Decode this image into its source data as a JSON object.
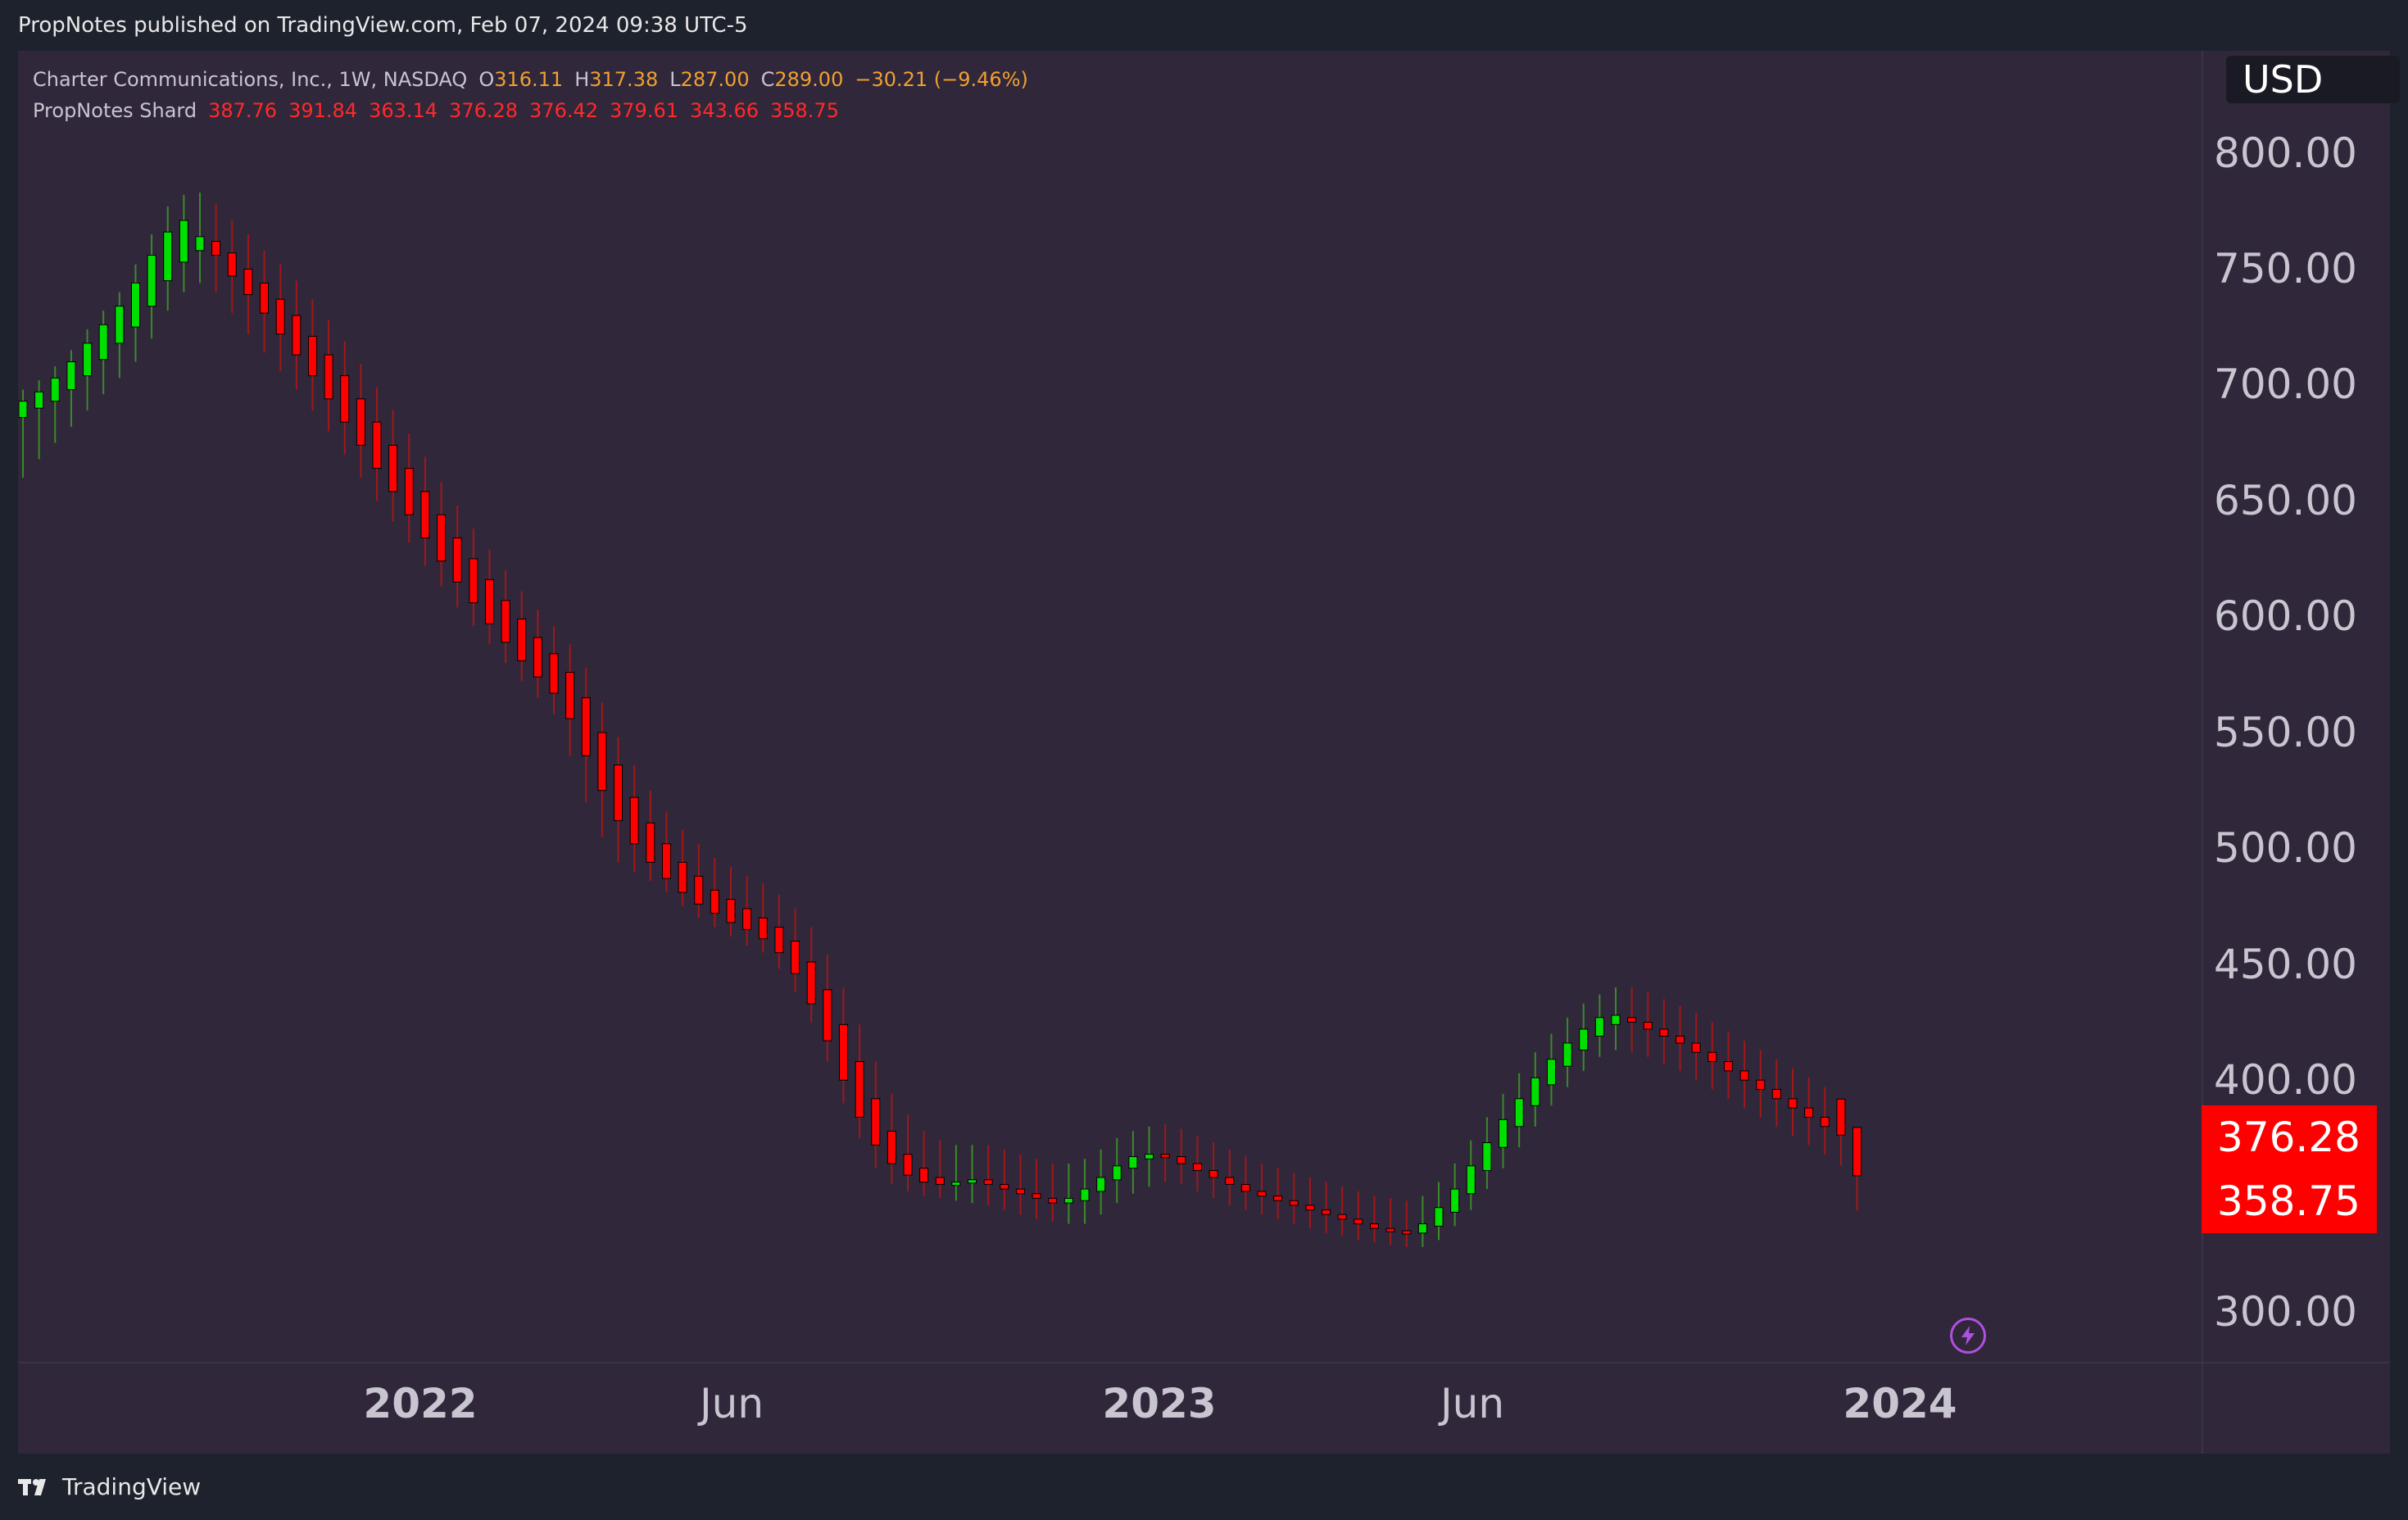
{
  "header": {
    "published": "PropNotes published on TradingView.com, Feb 07, 2024 09:38 UTC-5"
  },
  "legend": {
    "symbol_title": "Charter Communications, Inc., 1W, NASDAQ",
    "o_label": "O",
    "o_value": "316.11",
    "h_label": "H",
    "h_value": "317.38",
    "l_label": "L",
    "l_value": "287.00",
    "c_label": "C",
    "c_value": "289.00",
    "change": "−30.21 (−9.46%)",
    "indicator_name": "PropNotes Shard",
    "indicator_values": [
      "387.76",
      "391.84",
      "363.14",
      "376.28",
      "376.42",
      "379.61",
      "343.66",
      "358.75"
    ]
  },
  "price_axis": {
    "currency": "USD",
    "labels": [
      "800.00",
      "750.00",
      "700.00",
      "650.00",
      "600.00",
      "550.00",
      "500.00",
      "450.00",
      "400.00",
      "300.00"
    ],
    "tags": [
      "376.28",
      "358.75"
    ]
  },
  "time_axis": {
    "labels": [
      "2022",
      "Jun",
      "2023",
      "Jun",
      "2024"
    ]
  },
  "footer": {
    "brand": "TradingView"
  },
  "icons": {
    "bolt": "lightning-bolt-icon",
    "logo": "tradingview-logo-icon"
  },
  "colors": {
    "background": "#30273a",
    "up": "#00e000",
    "up_wick": "#3a8a2a",
    "down": "#ff0000",
    "down_wick": "#a01818",
    "tag": "#ff0000"
  },
  "chart_data": {
    "type": "candlestick",
    "interval": "1W",
    "ylim": [
      290,
      820
    ],
    "x_range": [
      "2021-10-11",
      "2024-02-05"
    ],
    "series": [
      {
        "x": "2021-10-11",
        "open": 686,
        "high": 698,
        "low": 660,
        "close": 693
      },
      {
        "x": "2021-10-18",
        "open": 690,
        "high": 702,
        "low": 668,
        "close": 697
      },
      {
        "x": "2021-10-25",
        "open": 693,
        "high": 708,
        "low": 675,
        "close": 703
      },
      {
        "x": "2021-11-01",
        "open": 698,
        "high": 715,
        "low": 682,
        "close": 710
      },
      {
        "x": "2021-11-08",
        "open": 704,
        "high": 724,
        "low": 689,
        "close": 718
      },
      {
        "x": "2021-11-15",
        "open": 711,
        "high": 732,
        "low": 696,
        "close": 726
      },
      {
        "x": "2021-11-22",
        "open": 718,
        "high": 740,
        "low": 703,
        "close": 734
      },
      {
        "x": "2021-11-29",
        "open": 725,
        "high": 752,
        "low": 710,
        "close": 744
      },
      {
        "x": "2021-12-06",
        "open": 734,
        "high": 765,
        "low": 720,
        "close": 756
      },
      {
        "x": "2021-12-13",
        "open": 745,
        "high": 777,
        "low": 732,
        "close": 766
      },
      {
        "x": "2021-12-20",
        "open": 753,
        "high": 782,
        "low": 740,
        "close": 771
      },
      {
        "x": "2021-12-27",
        "open": 758,
        "high": 783,
        "low": 744,
        "close": 764
      },
      {
        "x": "2022-01-03",
        "open": 762,
        "high": 778,
        "low": 740,
        "close": 756
      },
      {
        "x": "2022-01-10",
        "open": 757,
        "high": 771,
        "low": 731,
        "close": 747
      },
      {
        "x": "2022-01-17",
        "open": 750,
        "high": 765,
        "low": 722,
        "close": 739
      },
      {
        "x": "2022-01-24",
        "open": 744,
        "high": 758,
        "low": 714,
        "close": 731
      },
      {
        "x": "2022-01-31",
        "open": 737,
        "high": 752,
        "low": 706,
        "close": 722
      },
      {
        "x": "2022-02-07",
        "open": 730,
        "high": 745,
        "low": 698,
        "close": 713
      },
      {
        "x": "2022-02-14",
        "open": 721,
        "high": 737,
        "low": 689,
        "close": 704
      },
      {
        "x": "2022-02-21",
        "open": 713,
        "high": 728,
        "low": 680,
        "close": 694
      },
      {
        "x": "2022-02-28",
        "open": 704,
        "high": 719,
        "low": 670,
        "close": 684
      },
      {
        "x": "2022-03-07",
        "open": 694,
        "high": 709,
        "low": 660,
        "close": 674
      },
      {
        "x": "2022-03-14",
        "open": 684,
        "high": 699,
        "low": 650,
        "close": 664
      },
      {
        "x": "2022-03-21",
        "open": 674,
        "high": 689,
        "low": 641,
        "close": 654
      },
      {
        "x": "2022-03-28",
        "open": 664,
        "high": 679,
        "low": 632,
        "close": 644
      },
      {
        "x": "2022-04-04",
        "open": 654,
        "high": 669,
        "low": 622,
        "close": 634
      },
      {
        "x": "2022-04-11",
        "open": 644,
        "high": 658,
        "low": 613,
        "close": 624
      },
      {
        "x": "2022-04-18",
        "open": 634,
        "high": 648,
        "low": 604,
        "close": 615
      },
      {
        "x": "2022-04-25",
        "open": 625,
        "high": 638,
        "low": 596,
        "close": 606
      },
      {
        "x": "2022-05-02",
        "open": 616,
        "high": 629,
        "low": 588,
        "close": 597
      },
      {
        "x": "2022-05-09",
        "open": 607,
        "high": 620,
        "low": 580,
        "close": 589
      },
      {
        "x": "2022-05-16",
        "open": 599,
        "high": 611,
        "low": 572,
        "close": 581
      },
      {
        "x": "2022-05-23",
        "open": 591,
        "high": 603,
        "low": 565,
        "close": 574
      },
      {
        "x": "2022-05-30",
        "open": 584,
        "high": 596,
        "low": 558,
        "close": 567
      },
      {
        "x": "2022-06-06",
        "open": 576,
        "high": 588,
        "low": 540,
        "close": 556
      },
      {
        "x": "2022-06-13",
        "open": 565,
        "high": 578,
        "low": 520,
        "close": 540
      },
      {
        "x": "2022-06-20",
        "open": 550,
        "high": 563,
        "low": 505,
        "close": 525
      },
      {
        "x": "2022-06-27",
        "open": 536,
        "high": 548,
        "low": 494,
        "close": 512
      },
      {
        "x": "2022-07-04",
        "open": 522,
        "high": 536,
        "low": 490,
        "close": 502
      },
      {
        "x": "2022-07-11",
        "open": 511,
        "high": 525,
        "low": 486,
        "close": 494
      },
      {
        "x": "2022-07-18",
        "open": 502,
        "high": 516,
        "low": 481,
        "close": 487
      },
      {
        "x": "2022-07-25",
        "open": 494,
        "high": 508,
        "low": 475,
        "close": 481
      },
      {
        "x": "2022-08-01",
        "open": 488,
        "high": 502,
        "low": 470,
        "close": 476
      },
      {
        "x": "2022-08-08",
        "open": 482,
        "high": 496,
        "low": 466,
        "close": 472
      },
      {
        "x": "2022-08-15",
        "open": 478,
        "high": 492,
        "low": 462,
        "close": 468
      },
      {
        "x": "2022-08-22",
        "open": 474,
        "high": 488,
        "low": 458,
        "close": 465
      },
      {
        "x": "2022-08-29",
        "open": 470,
        "high": 485,
        "low": 455,
        "close": 461
      },
      {
        "x": "2022-09-05",
        "open": 466,
        "high": 480,
        "low": 448,
        "close": 455
      },
      {
        "x": "2022-09-12",
        "open": 460,
        "high": 474,
        "low": 438,
        "close": 446
      },
      {
        "x": "2022-09-19",
        "open": 451,
        "high": 466,
        "low": 425,
        "close": 433
      },
      {
        "x": "2022-09-26",
        "open": 439,
        "high": 454,
        "low": 408,
        "close": 417
      },
      {
        "x": "2022-10-03",
        "open": 424,
        "high": 440,
        "low": 390,
        "close": 400
      },
      {
        "x": "2022-10-10",
        "open": 408,
        "high": 424,
        "low": 375,
        "close": 384
      },
      {
        "x": "2022-10-17",
        "open": 392,
        "high": 408,
        "low": 362,
        "close": 372
      },
      {
        "x": "2022-10-24",
        "open": 378,
        "high": 394,
        "low": 355,
        "close": 364
      },
      {
        "x": "2022-10-31",
        "open": 368,
        "high": 385,
        "low": 352,
        "close": 359
      },
      {
        "x": "2022-11-07",
        "open": 362,
        "high": 378,
        "low": 350,
        "close": 356
      },
      {
        "x": "2022-11-14",
        "open": 358,
        "high": 374,
        "low": 349,
        "close": 355
      },
      {
        "x": "2022-11-21",
        "open": 356,
        "high": 372,
        "low": 348,
        "close": 356
      },
      {
        "x": "2022-11-28",
        "open": 356,
        "high": 372,
        "low": 347,
        "close": 357
      },
      {
        "x": "2022-12-05",
        "open": 357,
        "high": 372,
        "low": 346,
        "close": 355
      },
      {
        "x": "2022-12-12",
        "open": 355,
        "high": 370,
        "low": 344,
        "close": 353
      },
      {
        "x": "2022-12-19",
        "open": 353,
        "high": 368,
        "low": 342,
        "close": 351
      },
      {
        "x": "2022-12-26",
        "open": 351,
        "high": 366,
        "low": 340,
        "close": 349
      },
      {
        "x": "2023-01-02",
        "open": 349,
        "high": 364,
        "low": 339,
        "close": 347
      },
      {
        "x": "2023-01-09",
        "open": 347,
        "high": 364,
        "low": 338,
        "close": 349
      },
      {
        "x": "2023-01-16",
        "open": 348,
        "high": 366,
        "low": 338,
        "close": 353
      },
      {
        "x": "2023-01-23",
        "open": 352,
        "high": 370,
        "low": 342,
        "close": 358
      },
      {
        "x": "2023-01-30",
        "open": 357,
        "high": 375,
        "low": 347,
        "close": 363
      },
      {
        "x": "2023-02-06",
        "open": 362,
        "high": 378,
        "low": 351,
        "close": 367
      },
      {
        "x": "2023-02-13",
        "open": 366,
        "high": 380,
        "low": 354,
        "close": 368
      },
      {
        "x": "2023-02-20",
        "open": 368,
        "high": 381,
        "low": 356,
        "close": 367
      },
      {
        "x": "2023-02-27",
        "open": 367,
        "high": 379,
        "low": 355,
        "close": 364
      },
      {
        "x": "2023-03-06",
        "open": 364,
        "high": 376,
        "low": 352,
        "close": 361
      },
      {
        "x": "2023-03-13",
        "open": 361,
        "high": 373,
        "low": 349,
        "close": 358
      },
      {
        "x": "2023-03-20",
        "open": 358,
        "high": 370,
        "low": 346,
        "close": 355
      },
      {
        "x": "2023-03-27",
        "open": 355,
        "high": 367,
        "low": 344,
        "close": 352
      },
      {
        "x": "2023-04-03",
        "open": 352,
        "high": 364,
        "low": 342,
        "close": 350
      },
      {
        "x": "2023-04-10",
        "open": 350,
        "high": 362,
        "low": 340,
        "close": 348
      },
      {
        "x": "2023-04-17",
        "open": 348,
        "high": 360,
        "low": 338,
        "close": 346
      },
      {
        "x": "2023-04-24",
        "open": 346,
        "high": 358,
        "low": 336,
        "close": 344
      },
      {
        "x": "2023-05-01",
        "open": 344,
        "high": 356,
        "low": 334,
        "close": 342
      },
      {
        "x": "2023-05-08",
        "open": 342,
        "high": 354,
        "low": 333,
        "close": 340
      },
      {
        "x": "2023-05-15",
        "open": 340,
        "high": 352,
        "low": 331,
        "close": 338
      },
      {
        "x": "2023-05-22",
        "open": 338,
        "high": 350,
        "low": 330,
        "close": 336
      },
      {
        "x": "2023-05-29",
        "open": 336,
        "high": 349,
        "low": 329,
        "close": 335
      },
      {
        "x": "2023-06-05",
        "open": 335,
        "high": 348,
        "low": 328,
        "close": 334
      },
      {
        "x": "2023-06-12",
        "open": 334,
        "high": 350,
        "low": 328,
        "close": 338
      },
      {
        "x": "2023-06-19",
        "open": 337,
        "high": 356,
        "low": 331,
        "close": 345
      },
      {
        "x": "2023-06-26",
        "open": 343,
        "high": 364,
        "low": 337,
        "close": 353
      },
      {
        "x": "2023-07-03",
        "open": 351,
        "high": 374,
        "low": 344,
        "close": 363
      },
      {
        "x": "2023-07-10",
        "open": 361,
        "high": 384,
        "low": 353,
        "close": 373
      },
      {
        "x": "2023-07-17",
        "open": 371,
        "high": 394,
        "low": 362,
        "close": 383
      },
      {
        "x": "2023-07-24",
        "open": 380,
        "high": 403,
        "low": 371,
        "close": 392
      },
      {
        "x": "2023-07-31",
        "open": 389,
        "high": 412,
        "low": 380,
        "close": 401
      },
      {
        "x": "2023-08-07",
        "open": 398,
        "high": 420,
        "low": 389,
        "close": 409
      },
      {
        "x": "2023-08-14",
        "open": 406,
        "high": 427,
        "low": 397,
        "close": 416
      },
      {
        "x": "2023-08-21",
        "open": 413,
        "high": 433,
        "low": 404,
        "close": 422
      },
      {
        "x": "2023-08-28",
        "open": 419,
        "high": 437,
        "low": 410,
        "close": 427
      },
      {
        "x": "2023-09-04",
        "open": 424,
        "high": 440,
        "low": 413,
        "close": 428
      },
      {
        "x": "2023-09-11",
        "open": 427,
        "high": 440,
        "low": 412,
        "close": 425
      },
      {
        "x": "2023-09-18",
        "open": 425,
        "high": 438,
        "low": 410,
        "close": 422
      },
      {
        "x": "2023-09-25",
        "open": 422,
        "high": 435,
        "low": 407,
        "close": 419
      },
      {
        "x": "2023-10-02",
        "open": 419,
        "high": 432,
        "low": 404,
        "close": 416
      },
      {
        "x": "2023-10-09",
        "open": 416,
        "high": 429,
        "low": 400,
        "close": 412
      },
      {
        "x": "2023-10-16",
        "open": 412,
        "high": 425,
        "low": 396,
        "close": 408
      },
      {
        "x": "2023-10-23",
        "open": 408,
        "high": 421,
        "low": 392,
        "close": 404
      },
      {
        "x": "2023-10-30",
        "open": 404,
        "high": 417,
        "low": 388,
        "close": 400
      },
      {
        "x": "2023-11-06",
        "open": 400,
        "high": 413,
        "low": 384,
        "close": 396
      },
      {
        "x": "2023-11-13",
        "open": 396,
        "high": 409,
        "low": 380,
        "close": 392
      },
      {
        "x": "2023-11-20",
        "open": 392,
        "high": 405,
        "low": 376,
        "close": 388
      },
      {
        "x": "2023-11-27",
        "open": 388,
        "high": 401,
        "low": 372,
        "close": 384
      },
      {
        "x": "2023-12-04",
        "open": 384,
        "high": 397,
        "low": 368,
        "close": 380
      },
      {
        "x": "2023-12-11",
        "open": 391.84,
        "high": 391.84,
        "low": 363.14,
        "close": 376.28
      },
      {
        "x": "2023-12-18",
        "open": 379.61,
        "high": 379.61,
        "low": 343.66,
        "close": 358.75
      }
    ]
  }
}
